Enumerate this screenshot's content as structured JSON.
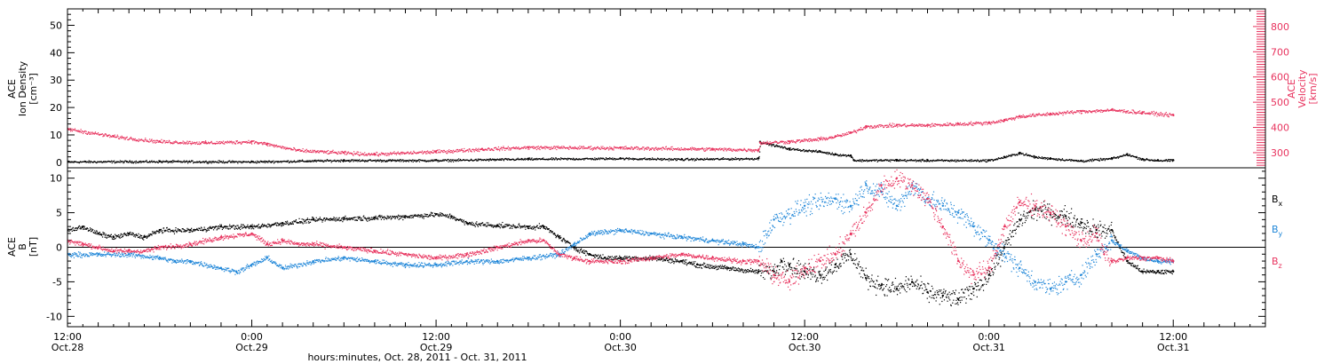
{
  "colors": {
    "black": "#000000",
    "pink": "#e8335e",
    "blue": "#1f86d8",
    "frame": "#000000"
  },
  "xaxis": {
    "label": "hours:minutes, Oct. 28, 2011 - Oct. 31, 2011",
    "range_hours": [
      0,
      78
    ],
    "ticks": [
      {
        "hours": 0,
        "time": "12:00",
        "date": "Oct.28"
      },
      {
        "hours": 12,
        "time": "0:00",
        "date": "Oct.29"
      },
      {
        "hours": 24,
        "time": "12:00",
        "date": "Oct.29"
      },
      {
        "hours": 36,
        "time": "0:00",
        "date": "Oct.30"
      },
      {
        "hours": 48,
        "time": "12:00",
        "date": "Oct.30"
      },
      {
        "hours": 60,
        "time": "0:00",
        "date": "Oct.31"
      },
      {
        "hours": 72,
        "time": "12:00",
        "date": "Oct.31"
      }
    ]
  },
  "chart_data": [
    {
      "type": "scatter",
      "left_ylabel": [
        "ACE",
        "Ion Density",
        "[cm⁻³]"
      ],
      "right_ylabel": [
        "ACE",
        "Velocity",
        "[km/s]"
      ],
      "left_ylim": [
        -2,
        56
      ],
      "left_ticks": [
        0,
        10,
        20,
        30,
        40,
        50
      ],
      "right_ylim": [
        240,
        870
      ],
      "right_ticks": [
        300,
        400,
        500,
        600,
        700,
        800
      ],
      "series": [
        {
          "axis": "left",
          "color": "black",
          "points": [
            [
              0,
              0.3
            ],
            [
              6,
              0.4
            ],
            [
              12,
              0.3
            ],
            [
              18,
              0.8
            ],
            [
              24,
              0.8
            ],
            [
              30,
              1.3
            ],
            [
              36,
              1.5
            ],
            [
              40,
              1.2
            ],
            [
              45,
              1.5
            ],
            [
              45.1,
              7.5
            ],
            [
              47,
              5
            ],
            [
              49,
              4
            ],
            [
              50,
              3
            ],
            [
              51,
              2.5
            ],
            [
              51.2,
              0.8
            ],
            [
              54,
              0.9
            ],
            [
              56,
              0.8
            ],
            [
              60,
              0.8
            ],
            [
              61,
              2
            ],
            [
              62,
              3.5
            ],
            [
              63,
              2
            ],
            [
              64,
              1.5
            ],
            [
              66,
              0.6
            ],
            [
              68,
              1.5
            ],
            [
              69,
              3
            ],
            [
              70,
              1.2
            ],
            [
              71,
              0.8
            ],
            [
              72,
              0.8
            ]
          ]
        },
        {
          "axis": "right",
          "color": "pink",
          "points": [
            [
              0,
              395
            ],
            [
              3,
              365
            ],
            [
              6,
              345
            ],
            [
              9,
              340
            ],
            [
              12,
              345
            ],
            [
              13,
              335
            ],
            [
              15,
              310
            ],
            [
              18,
              300
            ],
            [
              20,
              295
            ],
            [
              24,
              305
            ],
            [
              27,
              315
            ],
            [
              30,
              322
            ],
            [
              36,
              320
            ],
            [
              42,
              315
            ],
            [
              45,
              312
            ],
            [
              45.1,
              340
            ],
            [
              47,
              345
            ],
            [
              49,
              355
            ],
            [
              50,
              365
            ],
            [
              51,
              380
            ],
            [
              52,
              405
            ],
            [
              54,
              410
            ],
            [
              56,
              410
            ],
            [
              58,
              415
            ],
            [
              60,
              420
            ],
            [
              61,
              430
            ],
            [
              62,
              445
            ],
            [
              64,
              455
            ],
            [
              66,
              465
            ],
            [
              68,
              470
            ],
            [
              70,
              460
            ],
            [
              72,
              450
            ]
          ]
        }
      ]
    },
    {
      "type": "scatter",
      "left_ylabel": [
        "ACE",
        "B",
        "[nT]"
      ],
      "ylim": [
        -11.5,
        11.5
      ],
      "ticks": [
        -10,
        -5,
        0,
        5,
        10
      ],
      "zero_line": true,
      "legend": [
        "Bx",
        "By",
        "Bz"
      ],
      "series": [
        {
          "name": "Bx",
          "color": "black",
          "points": [
            [
              0,
              2.5
            ],
            [
              1,
              3
            ],
            [
              2,
              2
            ],
            [
              3,
              1.5
            ],
            [
              4,
              2
            ],
            [
              5,
              1.5
            ],
            [
              6,
              2.5
            ],
            [
              8,
              2.5
            ],
            [
              10,
              3
            ],
            [
              12,
              3
            ],
            [
              14,
              3.5
            ],
            [
              16,
              4
            ],
            [
              18,
              4.2
            ],
            [
              20,
              4.3
            ],
            [
              22,
              4.5
            ],
            [
              24,
              4.8
            ],
            [
              25,
              4.5
            ],
            [
              26,
              3.5
            ],
            [
              28,
              3.2
            ],
            [
              30,
              3
            ],
            [
              31,
              3
            ],
            [
              32,
              1.5
            ],
            [
              33,
              0
            ],
            [
              34,
              -1
            ],
            [
              35,
              -1.5
            ],
            [
              36,
              -1.5
            ],
            [
              38,
              -1.5
            ],
            [
              40,
              -2
            ],
            [
              41,
              -2.5
            ],
            [
              43,
              -3
            ],
            [
              45,
              -3.5
            ],
            [
              46,
              -3.5
            ],
            [
              46.5,
              -2
            ],
            [
              47,
              -2.5
            ],
            [
              48,
              -3.5
            ],
            [
              49,
              -4
            ],
            [
              50,
              -2.5
            ],
            [
              51,
              -1
            ],
            [
              52,
              -4.5
            ],
            [
              53,
              -5.5
            ],
            [
              54,
              -6
            ],
            [
              55,
              -5
            ],
            [
              56,
              -6.5
            ],
            [
              57,
              -7
            ],
            [
              58,
              -7.5
            ],
            [
              59,
              -6
            ],
            [
              60,
              -4
            ],
            [
              61,
              0
            ],
            [
              62,
              4
            ],
            [
              63,
              5.5
            ],
            [
              64,
              5
            ],
            [
              65,
              4.5
            ],
            [
              66,
              3.5
            ],
            [
              67,
              2.5
            ],
            [
              68,
              2.5
            ],
            [
              68.5,
              0
            ],
            [
              69,
              -2
            ],
            [
              70,
              -3.5
            ],
            [
              71,
              -3.5
            ],
            [
              72,
              -3.5
            ]
          ]
        },
        {
          "name": "By",
          "color": "blue",
          "points": [
            [
              0,
              -1
            ],
            [
              2,
              -1
            ],
            [
              4,
              -1
            ],
            [
              6,
              -1.5
            ],
            [
              7,
              -2
            ],
            [
              8,
              -2
            ],
            [
              10,
              -3
            ],
            [
              11,
              -3.5
            ],
            [
              12,
              -2.5
            ],
            [
              13,
              -1.5
            ],
            [
              14,
              -3
            ],
            [
              16,
              -2
            ],
            [
              18,
              -1.5
            ],
            [
              20,
              -2
            ],
            [
              22,
              -2.5
            ],
            [
              24,
              -2.5
            ],
            [
              26,
              -2
            ],
            [
              28,
              -2
            ],
            [
              30,
              -1.5
            ],
            [
              32,
              -1
            ],
            [
              33,
              0.5
            ],
            [
              34,
              2
            ],
            [
              36,
              2.5
            ],
            [
              38,
              2
            ],
            [
              40,
              1.5
            ],
            [
              42,
              1
            ],
            [
              44,
              0.5
            ],
            [
              45,
              0
            ],
            [
              46,
              4
            ],
            [
              48,
              6
            ],
            [
              50,
              7
            ],
            [
              51,
              6
            ],
            [
              52,
              9
            ],
            [
              53,
              8
            ],
            [
              54,
              6
            ],
            [
              55,
              9
            ],
            [
              56,
              7
            ],
            [
              57,
              6
            ],
            [
              58,
              5
            ],
            [
              59,
              3
            ],
            [
              60,
              1
            ],
            [
              61,
              -1
            ],
            [
              62,
              -3
            ],
            [
              63,
              -5
            ],
            [
              64,
              -6
            ],
            [
              65,
              -5
            ],
            [
              66,
              -4
            ],
            [
              67,
              -1
            ],
            [
              68,
              1
            ],
            [
              69,
              -0.5
            ],
            [
              70,
              -1.5
            ],
            [
              71,
              -2
            ],
            [
              72,
              -2
            ]
          ]
        },
        {
          "name": "Bz",
          "color": "pink",
          "points": [
            [
              0,
              1
            ],
            [
              1,
              0.5
            ],
            [
              2,
              0
            ],
            [
              3,
              -0.5
            ],
            [
              4,
              -0.5
            ],
            [
              5,
              -0.5
            ],
            [
              6,
              0
            ],
            [
              8,
              0.5
            ],
            [
              10,
              1.5
            ],
            [
              12,
              2
            ],
            [
              13,
              0.5
            ],
            [
              14,
              1
            ],
            [
              15,
              0.5
            ],
            [
              16,
              0.5
            ],
            [
              18,
              0
            ],
            [
              20,
              -0.5
            ],
            [
              22,
              -1
            ],
            [
              24,
              -1.5
            ],
            [
              26,
              -1
            ],
            [
              28,
              0
            ],
            [
              30,
              1
            ],
            [
              31,
              1
            ],
            [
              32,
              -1
            ],
            [
              33,
              -1.5
            ],
            [
              34,
              -2
            ],
            [
              36,
              -2
            ],
            [
              38,
              -1.5
            ],
            [
              40,
              -1
            ],
            [
              42,
              -1.5
            ],
            [
              44,
              -2
            ],
            [
              45,
              -2
            ],
            [
              46,
              -4
            ],
            [
              47,
              -5
            ],
            [
              48,
              -3
            ],
            [
              49,
              -2
            ],
            [
              50,
              -1
            ],
            [
              51,
              2
            ],
            [
              52,
              5
            ],
            [
              53,
              9
            ],
            [
              54,
              10
            ],
            [
              55,
              9
            ],
            [
              56,
              7
            ],
            [
              57,
              3
            ],
            [
              58,
              -2
            ],
            [
              59,
              -4
            ],
            [
              60,
              -3
            ],
            [
              61,
              3
            ],
            [
              62,
              6.5
            ],
            [
              63,
              6
            ],
            [
              64,
              5
            ],
            [
              65,
              3
            ],
            [
              66,
              1
            ],
            [
              67,
              2
            ],
            [
              67.5,
              -1
            ],
            [
              68,
              -2
            ],
            [
              69,
              -1.5
            ],
            [
              70,
              -1.5
            ],
            [
              71,
              -1.5
            ],
            [
              72,
              -2
            ]
          ]
        }
      ]
    }
  ]
}
